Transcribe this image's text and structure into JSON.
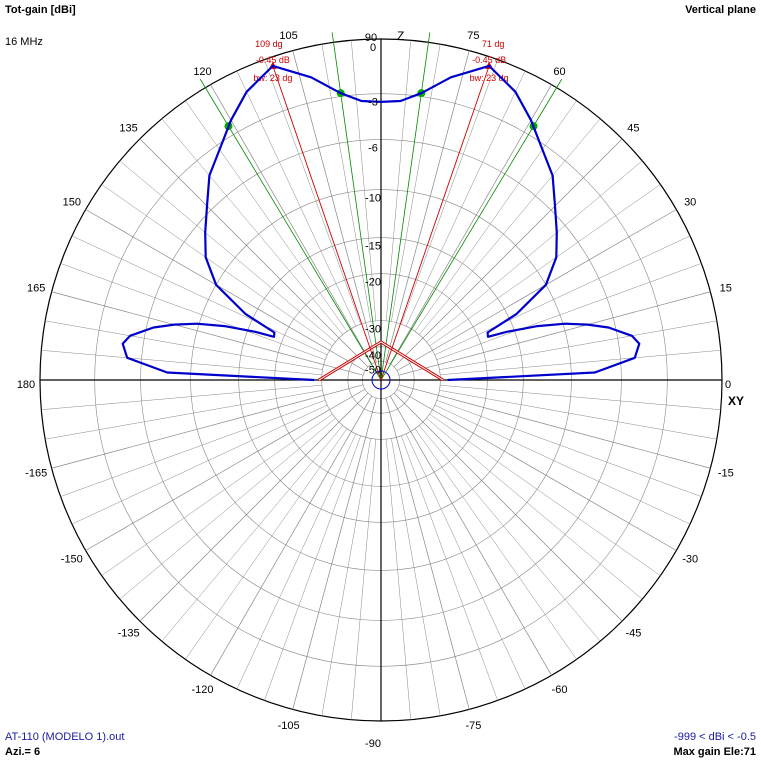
{
  "header": {
    "title": "Tot-gain [dBi]",
    "frequency": "16 MHz",
    "plane": "Vertical plane"
  },
  "footer": {
    "file": "AT-110 (MODELO 1).out",
    "azimuth": "Azi.= 6",
    "range": "-999 < dBi < -0.5",
    "max_gain": "Max gain Ele:71"
  },
  "colors": {
    "pattern": "#0000cc",
    "beam_line": "#cc0000",
    "bw_line": "#008800",
    "marker": "#00aa00",
    "grid": "#888888",
    "axis": "#000000",
    "annotation": "#cc0000"
  },
  "chart_data": {
    "type": "polar",
    "angle_unit": "deg",
    "angle_labels": [
      "0",
      "15",
      "30",
      "45",
      "60",
      "75",
      "90",
      "105",
      "120",
      "135",
      "150",
      "165",
      "180",
      "-165",
      "-150",
      "-135",
      "-120",
      "-105",
      "-90",
      "-75",
      "-60",
      "-45",
      "-30",
      "-15"
    ],
    "axis_labels": {
      "z": "Z",
      "xy": "XY"
    },
    "radial_labels": [
      "0",
      "-3",
      "-6",
      "-10",
      "-15",
      "-20",
      "-30",
      "-40",
      "-50"
    ],
    "radial_levels_db": [
      0,
      -3,
      -6,
      -10,
      -15,
      -20,
      -30,
      -40,
      -50
    ],
    "annotations": [
      {
        "angle": 71,
        "label_angle": "71 dg",
        "label_gain": "-0.45 dB",
        "label_bw": "bw: 23 dg"
      },
      {
        "angle": 109,
        "label_angle": "109 dg",
        "label_gain": "-0.45 dB",
        "label_bw": "bw: 23 dg"
      }
    ],
    "bw_markers_deg": [
      59,
      82,
      98,
      121
    ],
    "series": [
      {
        "points": [
          [
            0,
            -28
          ],
          [
            2,
            -8.0
          ],
          [
            5,
            -5.0
          ],
          [
            8,
            -4.6
          ],
          [
            10,
            -5.0
          ],
          [
            13,
            -6.5
          ],
          [
            15,
            -8.0
          ],
          [
            17,
            -9.8
          ],
          [
            19,
            -12.4
          ],
          [
            21,
            -16.0
          ],
          [
            22,
            -18.6
          ],
          [
            24,
            -18.4
          ],
          [
            26,
            -14.0
          ],
          [
            30,
            -10.0
          ],
          [
            35,
            -8.0
          ],
          [
            40,
            -6.8
          ],
          [
            45,
            -5.6
          ],
          [
            50,
            -4.2
          ],
          [
            55,
            -3.3
          ],
          [
            60,
            -2.2
          ],
          [
            65,
            -1.2
          ],
          [
            71,
            -0.45
          ],
          [
            77,
            -1.6
          ],
          [
            82,
            -2.8
          ],
          [
            86,
            -3.4
          ],
          [
            90,
            -3.5
          ],
          [
            94,
            -3.4
          ],
          [
            98,
            -2.8
          ],
          [
            103,
            -1.6
          ],
          [
            109,
            -0.45
          ],
          [
            115,
            -1.2
          ],
          [
            120,
            -2.2
          ],
          [
            125,
            -3.3
          ],
          [
            130,
            -4.2
          ],
          [
            135,
            -5.6
          ],
          [
            140,
            -6.8
          ],
          [
            145,
            -8.0
          ],
          [
            150,
            -10.0
          ],
          [
            154,
            -14.0
          ],
          [
            156,
            -18.4
          ],
          [
            158,
            -18.6
          ],
          [
            159,
            -16.0
          ],
          [
            161,
            -12.4
          ],
          [
            163,
            -9.8
          ],
          [
            165,
            -8.0
          ],
          [
            167,
            -6.5
          ],
          [
            170,
            -5.0
          ],
          [
            172,
            -4.6
          ],
          [
            175,
            -5.0
          ],
          [
            178,
            -8.0
          ],
          [
            180,
            -28
          ]
        ]
      }
    ]
  }
}
